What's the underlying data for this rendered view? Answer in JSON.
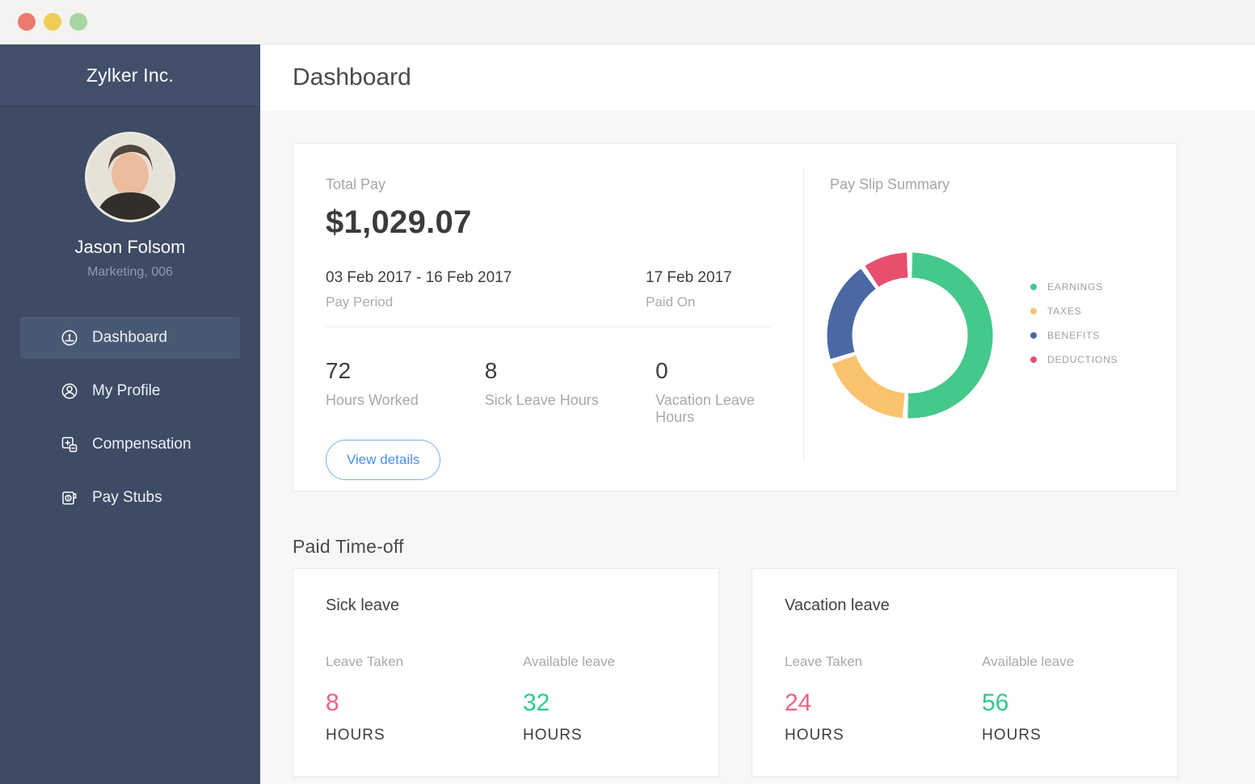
{
  "sidebar": {
    "company": "Zylker Inc.",
    "user": {
      "name": "Jason Folsom",
      "meta": "Marketing, 006"
    },
    "items": [
      {
        "label": "Dashboard",
        "active": true,
        "icon": "gauge-icon"
      },
      {
        "label": "My Profile",
        "active": false,
        "icon": "person-icon"
      },
      {
        "label": "Compensation",
        "active": false,
        "icon": "calculator-icon"
      },
      {
        "label": "Pay Stubs",
        "active": false,
        "icon": "paystub-icon"
      }
    ]
  },
  "header": {
    "title": "Dashboard"
  },
  "pay_card": {
    "total_pay_label": "Total Pay",
    "total_pay_value": "$1,029.07",
    "pay_period_value": "03 Feb 2017 - 16 Feb 2017",
    "pay_period_label": "Pay Period",
    "paid_on_value": "17 Feb 2017",
    "paid_on_label": "Paid On",
    "stats": [
      {
        "value": "72",
        "label": "Hours Worked"
      },
      {
        "value": "8",
        "label": "Sick Leave Hours"
      },
      {
        "value": "0",
        "label": "Vacation Leave Hours"
      }
    ],
    "view_details_label": "View details"
  },
  "pay_slip_summary": {
    "title": "Pay Slip Summary"
  },
  "chart_data": {
    "type": "pie",
    "variant": "donut",
    "title": "Pay Slip Summary",
    "labels": [
      "EARNINGS",
      "TAXES",
      "BENEFITS",
      "DEDUCTIONS"
    ],
    "values": [
      51,
      19,
      20.5,
      9.5
    ],
    "values_unit": "percent of circle, estimated from arc angles (no numeric labels shown)",
    "colors": [
      "#44c98b",
      "#fac26d",
      "#4a68a3",
      "#e84f6e"
    ],
    "start_angle": "top",
    "direction": "clockwise",
    "legend_position": "right"
  },
  "paid_time_off": {
    "heading": "Paid Time-off",
    "leave_taken_label": "Leave Taken",
    "available_label": "Available leave",
    "unit": "HOURS",
    "cards": [
      {
        "title": "Sick leave",
        "leave_taken_value": "8",
        "available_value": "32"
      },
      {
        "title": "Vacation leave",
        "leave_taken_value": "24",
        "available_value": "56"
      }
    ]
  },
  "colors": {
    "sidebar_bg": "#3d4b64",
    "sidebar_active_bg": "#4a5973",
    "accent_blue": "#4a90f2",
    "value_pink": "#f4617e",
    "value_green": "#2fc98a",
    "traffic_lights": [
      "#ec7a70",
      "#efce58",
      "#a6d6a2"
    ]
  }
}
